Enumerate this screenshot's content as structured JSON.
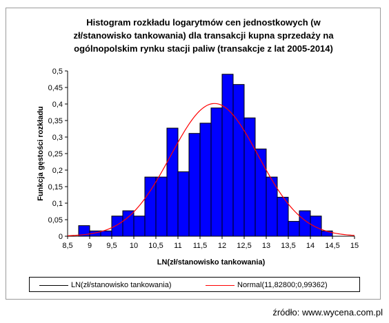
{
  "chart_data": {
    "type": "bar",
    "title": "Histogram rozkładu logarytmów cen jednostkowych (w\nzł/stanowisko tankowania) dla transakcji kupna sprzedaży na\nogólnopolskim rynku stacji paliw (transakcje z lat 2005-2014)",
    "xlabel": "LN(zł/stanowisko tankowania)",
    "ylabel": "Funkcja gęstości rozkładu",
    "xlim": [
      8.5,
      15
    ],
    "ylim": [
      0,
      0.5
    ],
    "x_ticks": [
      "8,5",
      "9",
      "9,5",
      "10",
      "10,5",
      "11",
      "11,5",
      "12",
      "12,5",
      "13",
      "13,5",
      "14",
      "14,5",
      "15"
    ],
    "y_ticks": [
      "0",
      "0,05",
      "0,1",
      "0,15",
      "0,2",
      "0,25",
      "0,3",
      "0,35",
      "0,4",
      "0,45",
      "0,5"
    ],
    "bin_width": 0.25,
    "bins": [
      {
        "x0": 8.75,
        "value": 0.032
      },
      {
        "x0": 9.0,
        "value": 0.016
      },
      {
        "x0": 9.25,
        "value": 0.016
      },
      {
        "x0": 9.5,
        "value": 0.061
      },
      {
        "x0": 9.75,
        "value": 0.077
      },
      {
        "x0": 10.0,
        "value": 0.061
      },
      {
        "x0": 10.25,
        "value": 0.179
      },
      {
        "x0": 10.5,
        "value": 0.179
      },
      {
        "x0": 10.75,
        "value": 0.327
      },
      {
        "x0": 11.0,
        "value": 0.195
      },
      {
        "x0": 11.25,
        "value": 0.311
      },
      {
        "x0": 11.5,
        "value": 0.342
      },
      {
        "x0": 11.75,
        "value": 0.388
      },
      {
        "x0": 12.0,
        "value": 0.49
      },
      {
        "x0": 12.25,
        "value": 0.459
      },
      {
        "x0": 12.5,
        "value": 0.358
      },
      {
        "x0": 12.75,
        "value": 0.264
      },
      {
        "x0": 13.0,
        "value": 0.179
      },
      {
        "x0": 13.25,
        "value": 0.118
      },
      {
        "x0": 13.5,
        "value": 0.045
      },
      {
        "x0": 13.75,
        "value": 0.077
      },
      {
        "x0": 14.0,
        "value": 0.061
      },
      {
        "x0": 14.25,
        "value": 0.016
      }
    ],
    "normal": {
      "mean": 11.828,
      "sd": 0.99362,
      "color": "#ff0000"
    },
    "bar_color": "#0000ff",
    "legend": {
      "position": "bottom",
      "items": [
        "LN(zł/stanowisko tankowania)",
        "Normal(11,82800;0,99362)"
      ]
    }
  },
  "source": "źródło: www.wycena.com.pl"
}
